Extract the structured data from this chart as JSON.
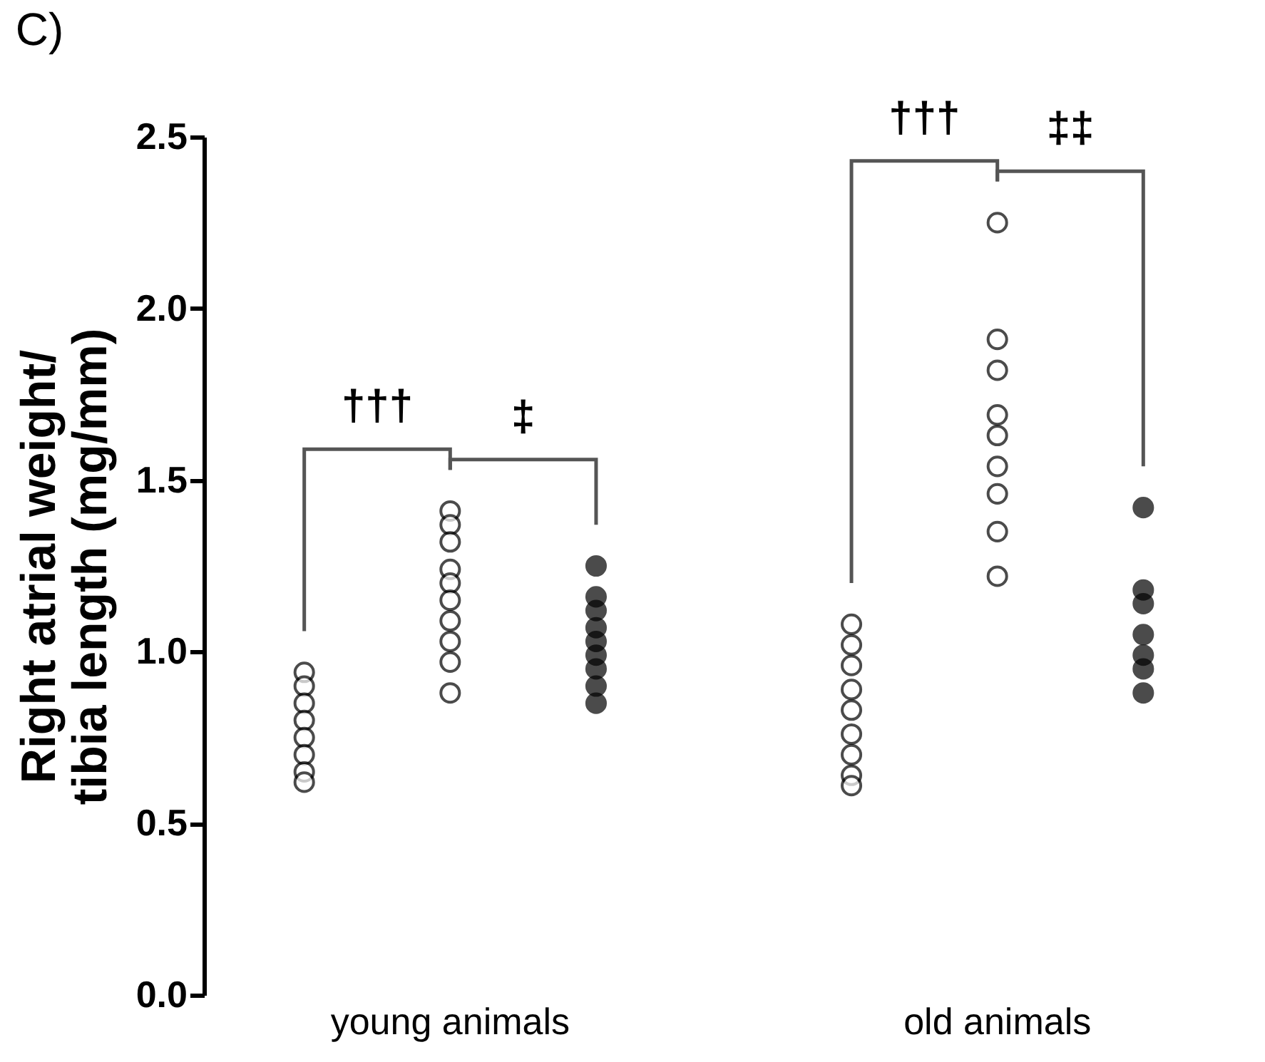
{
  "chart_data": {
    "type": "scatter",
    "title": "C)",
    "ylabel": "Right atrial weight/\ntibia length (mg/mm)",
    "categories": [
      "young animals",
      "old animals"
    ],
    "ylim": [
      0,
      2.5
    ],
    "yticks": [
      {
        "value": 0,
        "label": "0.0"
      },
      {
        "value": 0.5,
        "label": "0.5"
      },
      {
        "value": 1,
        "label": "1.0"
      },
      {
        "value": 1.5,
        "label": "1.5"
      },
      {
        "value": 2,
        "label": "2.0"
      },
      {
        "value": 2.5,
        "label": "2.5"
      }
    ],
    "grid": false,
    "marker": "circle",
    "series": [
      {
        "color": "#ffffff",
        "x": [
          "young animals",
          "young animals",
          "young animals",
          "young animals",
          "young animals",
          "young animals",
          "young animals",
          "young animals",
          "old animals",
          "old animals",
          "old animals",
          "old animals",
          "old animals",
          "old animals",
          "old animals",
          "old animals",
          "old animals"
        ],
        "values": [
          0.94,
          0.9,
          0.85,
          0.8,
          0.75,
          0.7,
          0.65,
          0.62,
          1.08,
          1.02,
          0.96,
          0.89,
          0.83,
          0.76,
          0.7,
          0.64,
          0.61
        ]
      },
      {
        "color": "#ffffff",
        "x": [
          "young animals",
          "young animals",
          "young animals",
          "young animals",
          "young animals",
          "young animals",
          "young animals",
          "young animals",
          "young animals",
          "young animals",
          "old animals",
          "old animals",
          "old animals",
          "old animals",
          "old animals",
          "old animals",
          "old animals",
          "old animals",
          "old animals"
        ],
        "values": [
          1.41,
          1.37,
          1.32,
          1.24,
          1.2,
          1.15,
          1.09,
          1.03,
          0.97,
          0.88,
          2.25,
          1.91,
          1.82,
          1.69,
          1.63,
          1.54,
          1.46,
          1.35,
          1.22
        ]
      },
      {
        "color": "#000000",
        "x": [
          "young animals",
          "young animals",
          "young animals",
          "young animals",
          "young animals",
          "young animals",
          "young animals",
          "young animals",
          "young animals",
          "old animals",
          "old animals",
          "old animals",
          "old animals",
          "old animals",
          "old animals",
          "old animals"
        ],
        "values": [
          1.25,
          1.16,
          1.12,
          1.07,
          1.03,
          0.99,
          0.95,
          0.9,
          0.85,
          1.42,
          1.18,
          1.14,
          1.05,
          0.99,
          0.95,
          0.88
        ]
      }
    ],
    "legend": false,
    "annotations": [
      "†††",
      "‡",
      "†††",
      "‡‡"
    ]
  }
}
